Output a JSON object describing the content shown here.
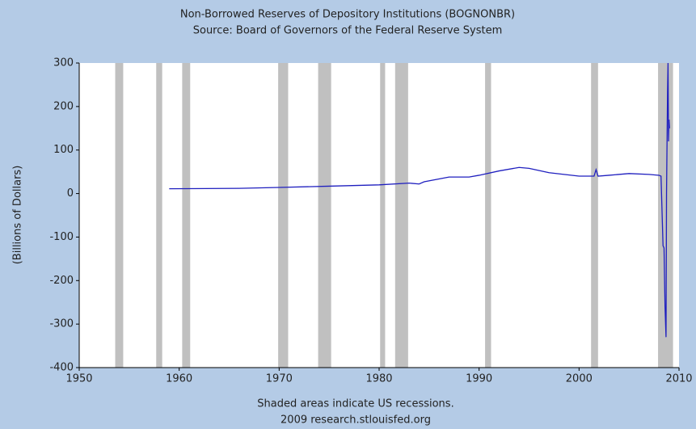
{
  "chart_data": {
    "type": "line",
    "title": "Non-Borrowed Reserves of Depository Institutions (BOGNONBR)",
    "subtitle": "Source: Board of Governors of the Federal Reserve System",
    "y_label": "(Billions of Dollars)",
    "footnote": "Shaded areas indicate US recessions.",
    "source": "2009 research.stlouisfed.org",
    "recessions": [
      [
        1953.6,
        1954.4
      ],
      [
        1957.7,
        1958.3
      ],
      [
        1960.3,
        1961.1
      ],
      [
        1969.9,
        1970.9
      ],
      [
        1973.9,
        1975.2
      ],
      [
        1980.1,
        1980.6
      ],
      [
        1981.6,
        1982.9
      ],
      [
        1990.6,
        1991.2
      ],
      [
        2001.2,
        2001.9
      ],
      [
        2007.9,
        2009.4
      ]
    ],
    "recession_color": "#c0c0c0",
    "x": [
      1959,
      1966,
      1970,
      1975,
      1980,
      1983,
      1984,
      1984.5,
      1987,
      1989,
      1990,
      1992,
      1994,
      1995,
      1997,
      2000,
      2001.5,
      2001.7,
      2001.9,
      2003,
      2005,
      2007,
      2008,
      2008.2,
      2008.4,
      2008.5,
      2008.6,
      2008.7,
      2008.75,
      2008.85,
      2008.9,
      2008.95,
      2009.0,
      2009.05
    ],
    "series": [
      {
        "name": "BOGNONBR",
        "color": "#1f1fbf",
        "values": [
          11,
          12,
          14,
          17,
          20,
          24,
          22,
          27,
          38,
          38,
          42,
          52,
          60,
          58,
          48,
          40,
          40,
          55,
          40,
          42,
          46,
          44,
          42,
          40,
          -120,
          -125,
          -260,
          -330,
          0,
          230,
          300,
          120,
          170,
          150
        ]
      }
    ],
    "xlim": [
      1950,
      2010
    ],
    "xticks": [
      1950,
      1960,
      1970,
      1980,
      1990,
      2000,
      2010
    ],
    "ylim": [
      -400,
      300
    ],
    "yticks": [
      300,
      200,
      100,
      0,
      -100,
      -200,
      -300,
      -400
    ]
  }
}
